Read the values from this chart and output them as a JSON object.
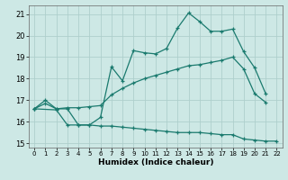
{
  "xlabel": "Humidex (Indice chaleur)",
  "background_color": "#cde8e5",
  "grid_color": "#aecfcc",
  "line_color": "#1a7a6e",
  "xlim": [
    -0.5,
    22.5
  ],
  "ylim": [
    14.8,
    21.4
  ],
  "yticks": [
    15,
    16,
    17,
    18,
    19,
    20,
    21
  ],
  "xticks": [
    0,
    1,
    2,
    3,
    4,
    5,
    6,
    7,
    8,
    9,
    10,
    11,
    12,
    13,
    14,
    15,
    16,
    17,
    18,
    19,
    20,
    21,
    22
  ],
  "line1_x": [
    0,
    1,
    2,
    3,
    4,
    5,
    6,
    7,
    8,
    9,
    10,
    11,
    12,
    13,
    14,
    15,
    16,
    17,
    18,
    19,
    20,
    21
  ],
  "line1_y": [
    16.6,
    17.0,
    16.6,
    16.6,
    15.85,
    15.85,
    16.2,
    18.55,
    17.9,
    19.3,
    19.2,
    19.15,
    19.4,
    20.35,
    21.05,
    20.65,
    20.2,
    20.2,
    20.3,
    19.25,
    18.5,
    17.3
  ],
  "line2_x": [
    0,
    1,
    2,
    3,
    4,
    5,
    6,
    7,
    8,
    9,
    10,
    11,
    12,
    13,
    14,
    15,
    16,
    17,
    18,
    19,
    20,
    21,
    22
  ],
  "line2_y": [
    16.6,
    16.85,
    16.6,
    16.65,
    16.65,
    16.7,
    16.75,
    17.25,
    17.55,
    17.8,
    18.0,
    18.15,
    18.3,
    18.45,
    18.6,
    18.65,
    18.75,
    18.85,
    19.0,
    18.45,
    17.3,
    16.9,
    null
  ],
  "line3_x": [
    0,
    2,
    3,
    4,
    5,
    6,
    7,
    8,
    9,
    10,
    11,
    12,
    13,
    14,
    15,
    16,
    17,
    18,
    19,
    20,
    21,
    22
  ],
  "line3_y": [
    16.6,
    16.55,
    15.85,
    15.85,
    15.85,
    15.8,
    15.8,
    15.75,
    15.7,
    15.65,
    15.6,
    15.55,
    15.5,
    15.5,
    15.5,
    15.45,
    15.4,
    15.4,
    15.2,
    15.15,
    15.1,
    15.1
  ]
}
